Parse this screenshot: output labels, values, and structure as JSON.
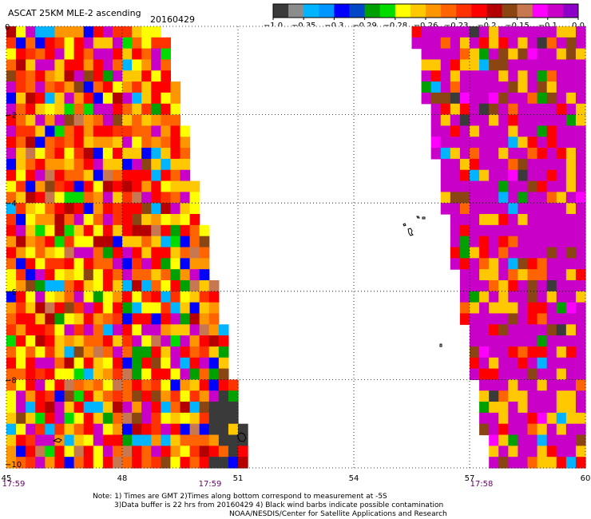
{
  "header": {
    "title": "ASCAT 25KM MLE-2 ascending",
    "date": "20160429"
  },
  "colorbar": {
    "colors": [
      "#3a3a3a",
      "#8c8c8c",
      "#00b4ff",
      "#0096ff",
      "#0000ff",
      "#0046c8",
      "#00a000",
      "#00dc00",
      "#ffff00",
      "#ffc800",
      "#ff9600",
      "#ff6400",
      "#ff3200",
      "#ff0000",
      "#b40000",
      "#8b4513",
      "#c87850",
      "#ff00ff",
      "#c800c8",
      "#8c00c8"
    ],
    "tick_labels": [
      "-1.0",
      "-0.35",
      "-0.3",
      "-0.29",
      "-0.28",
      "-0.26",
      "-0.23",
      "-0.2",
      "-0.15",
      "-0.1",
      "0.0"
    ]
  },
  "chart_data": {
    "type": "heatmap",
    "title": "ASCAT 25KM MLE-2 ascending",
    "x": {
      "min": 45,
      "max": 60,
      "ticks": [
        "45",
        "48",
        "51",
        "54",
        "57",
        "60"
      ]
    },
    "y": {
      "min": -10,
      "max": 0,
      "ticks": [
        "0",
        "-2",
        "-4",
        "-6",
        "-8",
        "-10"
      ]
    },
    "grid": true,
    "time_labels": [
      "17:59",
      "17:59",
      "17:58"
    ],
    "swaths": [
      {
        "name_hidden": true,
        "lon_range_top": [
          45,
          49
        ],
        "lon_range_bottom": [
          45,
          51.2
        ]
      },
      {
        "name_hidden": true,
        "lon_range_top": [
          55.7,
          60
        ],
        "lon_range_bottom": [
          57.6,
          60
        ]
      }
    ]
  },
  "footer": {
    "line1": "Note: 1) Times are GMT 2)Times along bottom correspond to measurement at -5S",
    "line2": "3)Data buffer is 22 hrs from 20160429 4) Black wind barbs indicate possible contamination",
    "line3": "NOAA/NESDIS/Center for Satellite Applications and Research"
  }
}
